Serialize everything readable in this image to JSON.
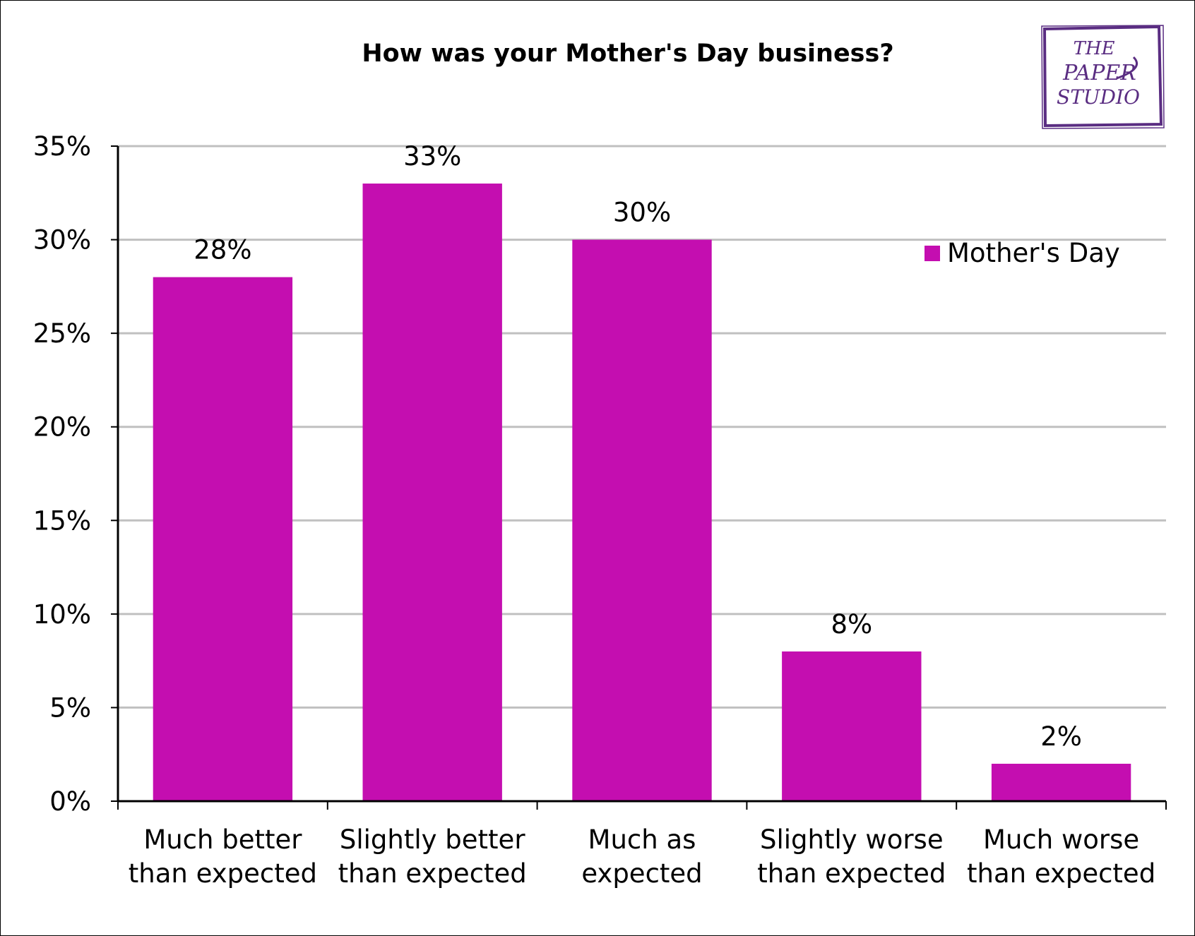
{
  "chart_data": {
    "type": "bar",
    "title": "How was your Mother's Day business?",
    "categories": [
      [
        "Much better",
        "than expected"
      ],
      [
        "Slightly better",
        "than expected"
      ],
      [
        "Much as",
        "expected"
      ],
      [
        "Slightly worse",
        "than expected"
      ],
      [
        "Much worse",
        "than expected"
      ]
    ],
    "series": [
      {
        "name": "Mother's Day",
        "values": [
          28,
          33,
          30,
          8,
          2
        ],
        "data_labels": [
          "28%",
          "33%",
          "30%",
          "8%",
          "2%"
        ]
      }
    ],
    "y_ticks": [
      "0%",
      "5%",
      "10%",
      "15%",
      "20%",
      "25%",
      "30%",
      "35%"
    ],
    "ylim": [
      0,
      35
    ],
    "grid": true,
    "legend_position": "right",
    "colors": {
      "bar": "#c40eb0",
      "grid": "#c0c0c0",
      "axis": "#000000",
      "logo": "#5a2d82"
    }
  },
  "logo": {
    "lines": [
      "THE",
      "PAPER",
      "STUDIO"
    ]
  }
}
